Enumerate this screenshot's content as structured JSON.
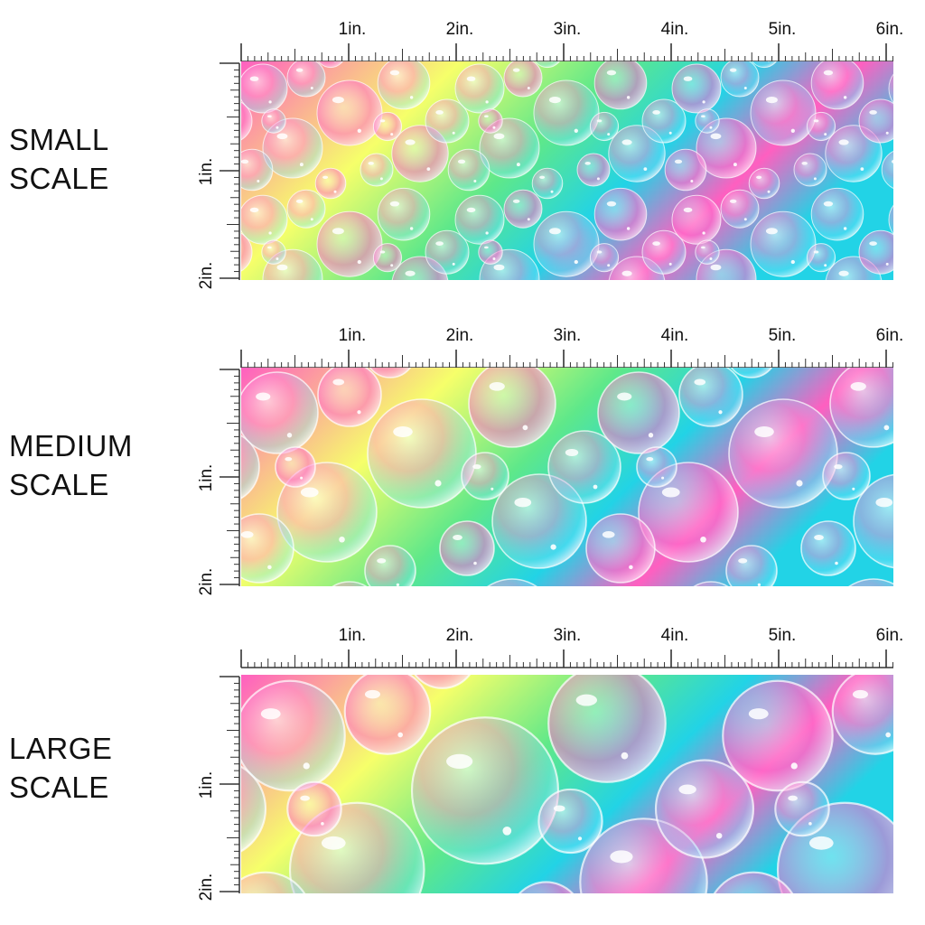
{
  "panels": [
    {
      "label_line1": "SMALL",
      "label_line2": "SCALE",
      "pattern_scale": 0.6
    },
    {
      "label_line1": "MEDIUM",
      "label_line2": "SCALE",
      "pattern_scale": 1.0
    },
    {
      "label_line1": "LARGE",
      "label_line2": "SCALE",
      "pattern_scale": 1.35
    }
  ],
  "ruler": {
    "horizontal_labels": [
      "1in.",
      "2in.",
      "3in.",
      "4in.",
      "5in.",
      "6in."
    ],
    "vertical_labels": [
      "1in.",
      "2in."
    ]
  },
  "colors": {
    "pink": "#ff5fc0",
    "yellow": "#f6ff6a",
    "green": "#5ee88a",
    "cyan": "#22d3e6",
    "ruler": "#333333"
  }
}
